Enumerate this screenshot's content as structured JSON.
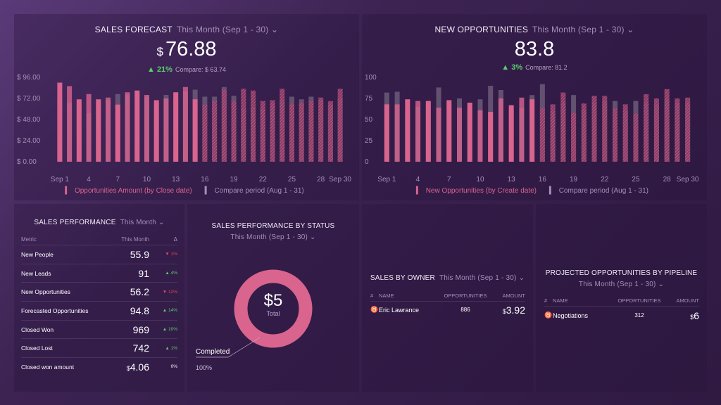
{
  "colors": {
    "current": "#d9648e",
    "compare": "#6b5a78",
    "up": "#5ccf6e",
    "down": "#e0475a"
  },
  "sales_forecast": {
    "title": "SALES FORECAST",
    "period": "This Month (Sep 1 - 30)",
    "currency": "$",
    "value": "76.88",
    "change": "21%",
    "compare": "Compare: $ 63.74",
    "legend": [
      "Opportunities Amount (by Close date)",
      "Compare period (Aug 1 - 31)"
    ]
  },
  "new_opportunities": {
    "title": "NEW OPPORTUNITIES",
    "period": "This Month (Sep 1 - 30)",
    "value": "83.8",
    "change": "3%",
    "compare": "Compare: 81.2",
    "legend": [
      "New Opportunities (by Create date)",
      "Compare period (Aug 1 - 31)"
    ]
  },
  "chart_data": [
    {
      "type": "bar",
      "ylim": [
        0,
        96
      ],
      "yticks": [
        "$ 0.00",
        "$ 24.00",
        "$ 48.00",
        "$ 72.00",
        "$ 96.00"
      ],
      "ytick_values": [
        0,
        24,
        48,
        72,
        96
      ],
      "xticks": [
        "Sep 1",
        "4",
        "7",
        "10",
        "13",
        "16",
        "19",
        "22",
        "25",
        "28",
        "Sep 30"
      ],
      "xtick_days": [
        1,
        4,
        7,
        10,
        13,
        16,
        19,
        22,
        25,
        28,
        30
      ],
      "series": [
        {
          "name": "Opportunities Amount (by Close date)",
          "values": [
            90,
            86,
            71,
            77,
            71,
            73,
            65,
            79,
            81,
            76,
            70,
            72,
            79,
            85,
            71,
            65,
            69,
            82,
            69,
            83,
            81,
            69,
            70,
            83,
            66,
            67,
            69,
            73,
            69,
            83
          ]
        },
        {
          "name": "Compare period (Aug 1 - 31)",
          "values": [
            72,
            67,
            68,
            55,
            66,
            70,
            77,
            76,
            78,
            74,
            67,
            76,
            70,
            80,
            82,
            74,
            74,
            85,
            75,
            60,
            62,
            60,
            66,
            70,
            74,
            71,
            74,
            70,
            65,
            72
          ]
        }
      ],
      "forecast_from_day": 16
    },
    {
      "type": "bar",
      "ylim": [
        0,
        100
      ],
      "yticks": [
        "0",
        "25",
        "50",
        "75",
        "100"
      ],
      "ytick_values": [
        0,
        25,
        50,
        75,
        100
      ],
      "xticks": [
        "Sep 1",
        "4",
        "7",
        "10",
        "13",
        "16",
        "19",
        "22",
        "25",
        "28",
        "Sep 30"
      ],
      "xtick_days": [
        1,
        4,
        7,
        10,
        13,
        16,
        19,
        22,
        25,
        28,
        30
      ],
      "series": [
        {
          "name": "New Opportunities (by Create date)",
          "values": [
            68,
            68,
            74,
            72,
            72,
            64,
            73,
            64,
            70,
            61,
            59,
            75,
            67,
            76,
            74,
            64,
            68,
            82,
            58,
            69,
            78,
            78,
            63,
            68,
            57,
            80,
            75,
            86,
            75,
            76
          ]
        },
        {
          "name": "Compare period (Aug 1 - 31)",
          "values": [
            82,
            83,
            57,
            65,
            70,
            88,
            68,
            75,
            63,
            74,
            90,
            85,
            61,
            64,
            79,
            92,
            60,
            70,
            79,
            62,
            70,
            72,
            72,
            60,
            72,
            70,
            68,
            74,
            70,
            70
          ]
        }
      ],
      "forecast_from_day": 16
    }
  ],
  "sales_performance": {
    "title": "SALES PERFORMANCE",
    "period": "This Month",
    "headers": [
      "Metric",
      "This Month",
      "Δ"
    ],
    "rows": [
      {
        "metric": "New People",
        "value": "55.9",
        "delta": "1%",
        "dir": "down"
      },
      {
        "metric": "New Leads",
        "value": "91",
        "delta": "4%",
        "dir": "up"
      },
      {
        "metric": "New Opportunities",
        "value": "56.2",
        "delta": "12%",
        "dir": "down"
      },
      {
        "metric": "Forecasted Opportunities",
        "value": "94.8",
        "delta": "14%",
        "dir": "up"
      },
      {
        "metric": "Closed Won",
        "value": "969",
        "delta": "10%",
        "dir": "up"
      },
      {
        "metric": "Closed Lost",
        "value": "742",
        "delta": "1%",
        "dir": "up"
      },
      {
        "metric": "Closed won amount",
        "value": "4.06",
        "currency": "$",
        "delta": "0%",
        "dir": "none"
      }
    ]
  },
  "status": {
    "title": "SALES PERFORMANCE BY STATUS",
    "period": "This Month (Sep 1 - 30)",
    "total": "$5",
    "total_label": "Total",
    "slice_label": "Completed",
    "slice_pct": "100%",
    "slice_value": 100
  },
  "sales_by_owner": {
    "title": "SALES BY OWNER",
    "period": "This Month (Sep 1 - 30)",
    "headers": [
      "#",
      "NAME",
      "OPPORTUNITIES",
      "AMOUNT"
    ],
    "rows": [
      {
        "name": "Eric Lawrance",
        "opportunities": "886",
        "currency": "$",
        "amount": "3.92"
      }
    ]
  },
  "pipeline": {
    "title": "PROJECTED OPPORTUNITIES BY PIPELINE",
    "period": "This Month (Sep 1 - 30)",
    "headers": [
      "#",
      "NAME",
      "OPPORTUNITIES",
      "AMOUNT"
    ],
    "rows": [
      {
        "name": "Negotiations",
        "opportunities": "312",
        "currency": "$",
        "amount": "6"
      }
    ]
  }
}
